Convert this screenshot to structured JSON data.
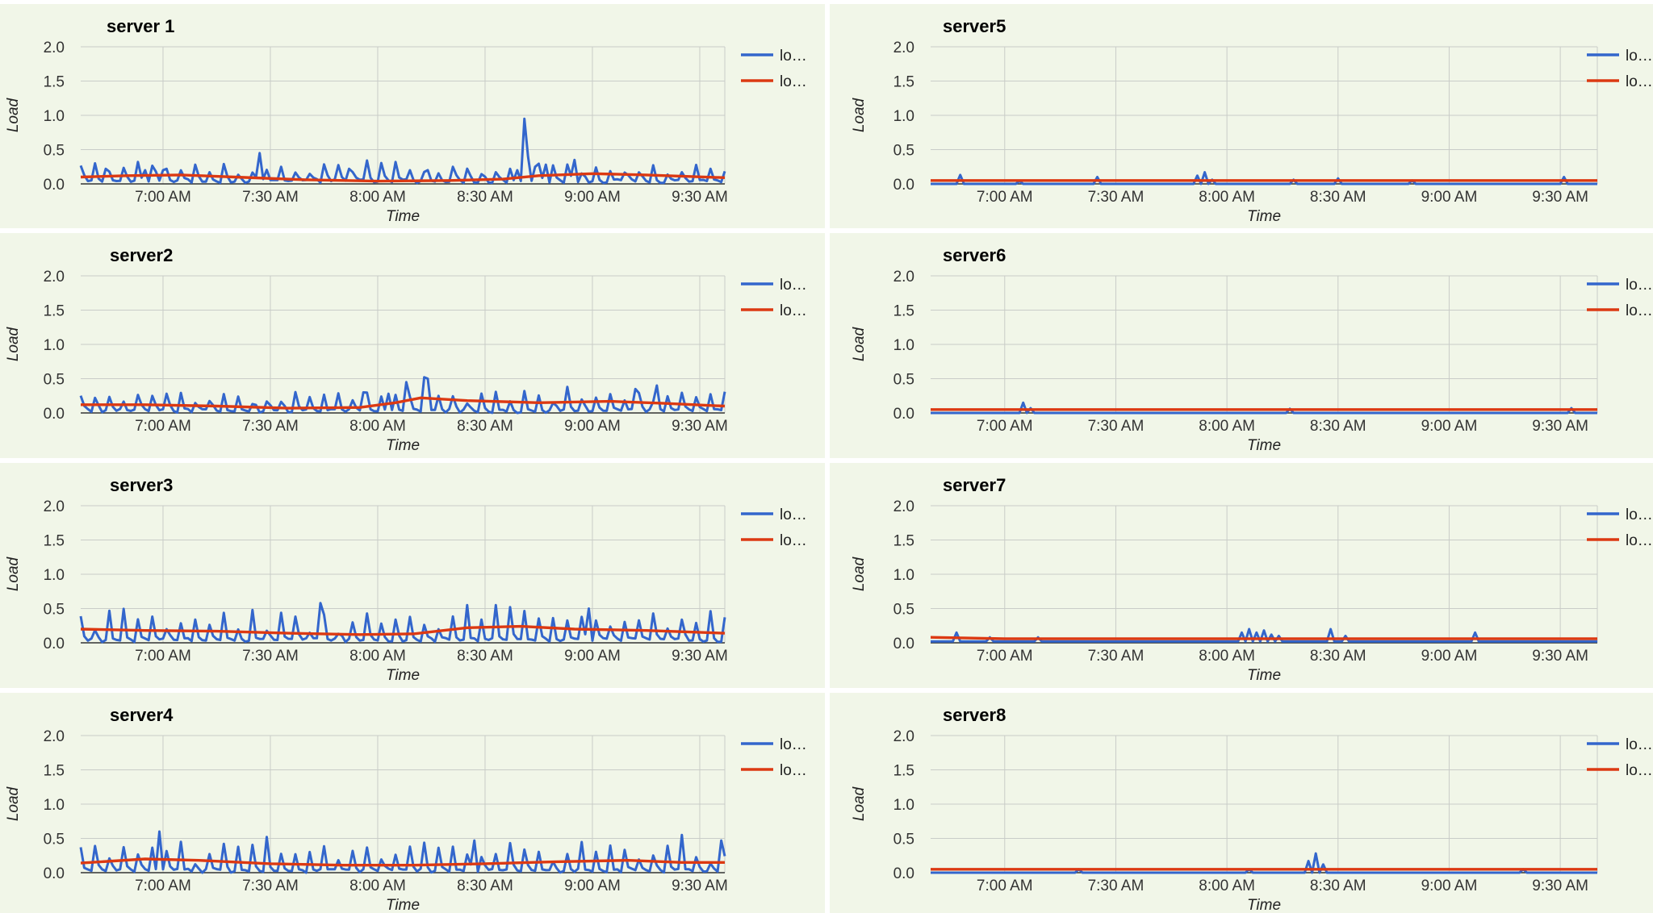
{
  "colors": {
    "panel_background": "#f1f6e8",
    "grid": "#c9ccc8",
    "series_blue": "#3366cc",
    "series_red": "#dc3912",
    "axis_baseline": "#333333"
  },
  "chart_data": [
    {
      "type": "line",
      "title": "server 1",
      "xlabel": "Time",
      "ylabel": "Load",
      "x_range": [
        "06:37",
        "09:37"
      ],
      "ylim": [
        0,
        2
      ],
      "y_ticks": [
        "2.0",
        "1.5",
        "1.0",
        "0.5",
        "0.0"
      ],
      "x_ticks": [
        "7:00 AM",
        "7:30 AM",
        "8:00 AM",
        "8:30 AM",
        "9:00 AM",
        "9:30 AM"
      ],
      "grid": true,
      "legend": {
        "position": "right",
        "entries": [
          "lo…",
          "lo…"
        ]
      },
      "series": [
        {
          "color": "#3366cc",
          "pattern": "spiky",
          "base": 0.05,
          "spike_max": 0.3,
          "spikes": [
            [
              "06:41",
              0.3
            ],
            [
              "06:44",
              0.22
            ],
            [
              "06:55",
              0.2
            ],
            [
              "07:00",
              0.2
            ],
            [
              "06:58",
              0.18
            ],
            [
              "07:27",
              0.45
            ],
            [
              "07:33",
              0.25
            ],
            [
              "07:52",
              0.22
            ],
            [
              "08:09",
              0.2
            ],
            [
              "08:14",
              0.2
            ],
            [
              "08:39",
              0.2
            ],
            [
              "08:41",
              0.95
            ],
            [
              "08:42",
              0.4
            ],
            [
              "08:44",
              0.25
            ],
            [
              "08:47",
              0.28
            ],
            [
              "08:55",
              0.35
            ],
            [
              "09:33",
              0.22
            ]
          ]
        },
        {
          "color": "#dc3912",
          "pattern": "smooth",
          "points": [
            [
              "06:37",
              0.1
            ],
            [
              "06:50",
              0.12
            ],
            [
              "07:05",
              0.13
            ],
            [
              "07:20",
              0.1
            ],
            [
              "07:40",
              0.06
            ],
            [
              "08:00",
              0.04
            ],
            [
              "08:20",
              0.05
            ],
            [
              "08:35",
              0.07
            ],
            [
              "08:45",
              0.12
            ],
            [
              "09:00",
              0.15
            ],
            [
              "09:15",
              0.13
            ],
            [
              "09:37",
              0.09
            ]
          ]
        }
      ]
    },
    {
      "type": "line",
      "title": "server2",
      "xlabel": "Time",
      "ylabel": "Load",
      "x_range": [
        "06:37",
        "09:37"
      ],
      "ylim": [
        0,
        2
      ],
      "y_ticks": [
        "2.0",
        "1.5",
        "1.0",
        "0.5",
        "0.0"
      ],
      "x_ticks": [
        "7:00 AM",
        "7:30 AM",
        "8:00 AM",
        "8:30 AM",
        "9:00 AM",
        "9:30 AM"
      ],
      "grid": true,
      "legend": {
        "position": "right",
        "entries": [
          "lo…",
          "lo…"
        ]
      },
      "series": [
        {
          "color": "#3366cc",
          "pattern": "spiky",
          "base": 0.04,
          "spike_max": 0.28,
          "spikes": [
            [
              "07:56",
              0.3
            ],
            [
              "08:03",
              0.28
            ],
            [
              "08:08",
              0.45
            ],
            [
              "08:13",
              0.52
            ],
            [
              "08:14",
              0.5
            ],
            [
              "08:41",
              0.32
            ],
            [
              "08:53",
              0.38
            ],
            [
              "09:12",
              0.35
            ],
            [
              "09:18",
              0.4
            ]
          ]
        },
        {
          "color": "#dc3912",
          "pattern": "smooth",
          "points": [
            [
              "06:37",
              0.12
            ],
            [
              "06:55",
              0.12
            ],
            [
              "07:15",
              0.1
            ],
            [
              "07:35",
              0.07
            ],
            [
              "07:55",
              0.08
            ],
            [
              "08:05",
              0.15
            ],
            [
              "08:12",
              0.22
            ],
            [
              "08:25",
              0.18
            ],
            [
              "08:45",
              0.15
            ],
            [
              "09:05",
              0.17
            ],
            [
              "09:20",
              0.14
            ],
            [
              "09:37",
              0.1
            ]
          ]
        }
      ]
    },
    {
      "type": "line",
      "title": "server3",
      "xlabel": "Time",
      "ylabel": "Load",
      "x_range": [
        "06:37",
        "09:37"
      ],
      "ylim": [
        0,
        2
      ],
      "y_ticks": [
        "2.0",
        "1.5",
        "1.0",
        "0.5",
        "0.0"
      ],
      "x_ticks": [
        "7:00 AM",
        "7:30 AM",
        "8:00 AM",
        "8:30 AM",
        "9:00 AM",
        "9:30 AM"
      ],
      "grid": true,
      "legend": {
        "position": "right",
        "entries": [
          "lo…",
          "lo…"
        ]
      },
      "series": [
        {
          "color": "#3366cc",
          "pattern": "spiky",
          "base": 0.05,
          "spike_max": 0.45,
          "spikes": [
            [
              "07:44",
              0.58
            ],
            [
              "08:25",
              0.55
            ],
            [
              "08:33",
              0.55
            ],
            [
              "08:37",
              0.52
            ],
            [
              "08:59",
              0.5
            ]
          ]
        },
        {
          "color": "#dc3912",
          "pattern": "smooth",
          "points": [
            [
              "06:37",
              0.2
            ],
            [
              "06:55",
              0.18
            ],
            [
              "07:15",
              0.17
            ],
            [
              "07:35",
              0.14
            ],
            [
              "07:55",
              0.12
            ],
            [
              "08:10",
              0.13
            ],
            [
              "08:25",
              0.22
            ],
            [
              "08:40",
              0.24
            ],
            [
              "08:55",
              0.2
            ],
            [
              "09:15",
              0.18
            ],
            [
              "09:37",
              0.14
            ]
          ]
        }
      ]
    },
    {
      "type": "line",
      "title": "server4",
      "xlabel": "Time",
      "ylabel": "Load",
      "x_range": [
        "06:37",
        "09:37"
      ],
      "ylim": [
        0,
        2
      ],
      "y_ticks": [
        "2.0",
        "1.5",
        "1.0",
        "0.5",
        "0.0"
      ],
      "x_ticks": [
        "7:00 AM",
        "7:30 AM",
        "8:00 AM",
        "8:30 AM",
        "9:00 AM",
        "9:30 AM"
      ],
      "grid": true,
      "legend": {
        "position": "right",
        "entries": [
          "lo…",
          "lo…"
        ]
      },
      "series": [
        {
          "color": "#3366cc",
          "pattern": "spiky",
          "base": 0.04,
          "spike_max": 0.42,
          "spikes": [
            [
              "06:59",
              0.6
            ],
            [
              "07:29",
              0.52
            ],
            [
              "08:27",
              0.47
            ],
            [
              "09:25",
              0.55
            ],
            [
              "09:36",
              0.47
            ]
          ]
        },
        {
          "color": "#dc3912",
          "pattern": "smooth",
          "points": [
            [
              "06:37",
              0.14
            ],
            [
              "06:55",
              0.2
            ],
            [
              "07:10",
              0.18
            ],
            [
              "07:30",
              0.13
            ],
            [
              "07:50",
              0.11
            ],
            [
              "08:10",
              0.11
            ],
            [
              "08:30",
              0.13
            ],
            [
              "08:50",
              0.16
            ],
            [
              "09:10",
              0.18
            ],
            [
              "09:25",
              0.15
            ],
            [
              "09:37",
              0.15
            ]
          ]
        }
      ]
    },
    {
      "type": "line",
      "title": "server5",
      "xlabel": "Time",
      "ylabel": "Load",
      "x_range": [
        "06:40",
        "09:40"
      ],
      "ylim": [
        0,
        2
      ],
      "y_ticks": [
        "2.0",
        "1.5",
        "1.0",
        "0.5",
        "0.0"
      ],
      "x_ticks": [
        "7:00 AM",
        "7:30 AM",
        "8:00 AM",
        "8:30 AM",
        "9:00 AM",
        "9:30 AM"
      ],
      "grid": true,
      "legend": {
        "position": "right",
        "entries": [
          "lo…",
          "lo…"
        ]
      },
      "series": [
        {
          "color": "#3366cc",
          "pattern": "flat",
          "base": 0.0,
          "spikes": [
            [
              "06:48",
              0.13
            ],
            [
              "07:04",
              0.04
            ],
            [
              "07:25",
              0.1
            ],
            [
              "07:52",
              0.12
            ],
            [
              "07:54",
              0.17
            ],
            [
              "07:56",
              0.06
            ],
            [
              "08:18",
              0.06
            ],
            [
              "08:30",
              0.08
            ],
            [
              "08:50",
              0.05
            ],
            [
              "09:31",
              0.1
            ]
          ]
        },
        {
          "color": "#dc3912",
          "pattern": "smooth",
          "points": [
            [
              "06:40",
              0.05
            ],
            [
              "09:40",
              0.05
            ]
          ]
        }
      ]
    },
    {
      "type": "line",
      "title": "server6",
      "xlabel": "Time",
      "ylabel": "Load",
      "x_range": [
        "06:40",
        "09:40"
      ],
      "ylim": [
        0,
        2
      ],
      "y_ticks": [
        "2.0",
        "1.5",
        "1.0",
        "0.5",
        "0.0"
      ],
      "x_ticks": [
        "7:00 AM",
        "7:30 AM",
        "8:00 AM",
        "8:30 AM",
        "9:00 AM",
        "9:30 AM"
      ],
      "grid": true,
      "legend": {
        "position": "right",
        "entries": [
          "lo…",
          "lo…"
        ]
      },
      "series": [
        {
          "color": "#3366cc",
          "pattern": "flat",
          "base": 0.0,
          "spikes": [
            [
              "07:05",
              0.15
            ],
            [
              "07:07",
              0.07
            ],
            [
              "08:17",
              0.06
            ],
            [
              "09:33",
              0.07
            ]
          ]
        },
        {
          "color": "#dc3912",
          "pattern": "smooth",
          "points": [
            [
              "06:40",
              0.05
            ],
            [
              "09:40",
              0.05
            ]
          ]
        }
      ]
    },
    {
      "type": "line",
      "title": "server7",
      "xlabel": "Time",
      "ylabel": "Load",
      "x_range": [
        "06:40",
        "09:40"
      ],
      "ylim": [
        0,
        2
      ],
      "y_ticks": [
        "2.0",
        "1.5",
        "1.0",
        "0.5",
        "0.0"
      ],
      "x_ticks": [
        "7:00 AM",
        "7:30 AM",
        "8:00 AM",
        "8:30 AM",
        "9:00 AM",
        "9:30 AM"
      ],
      "grid": true,
      "legend": {
        "position": "right",
        "entries": [
          "lo…",
          "lo…"
        ]
      },
      "series": [
        {
          "color": "#3366cc",
          "pattern": "flat",
          "base": 0.02,
          "spikes": [
            [
              "06:47",
              0.15
            ],
            [
              "06:56",
              0.08
            ],
            [
              "07:09",
              0.08
            ],
            [
              "08:04",
              0.15
            ],
            [
              "08:06",
              0.2
            ],
            [
              "08:08",
              0.15
            ],
            [
              "08:10",
              0.18
            ],
            [
              "08:12",
              0.12
            ],
            [
              "08:14",
              0.1
            ],
            [
              "08:28",
              0.2
            ],
            [
              "08:32",
              0.1
            ],
            [
              "09:07",
              0.15
            ]
          ]
        },
        {
          "color": "#dc3912",
          "pattern": "smooth",
          "points": [
            [
              "06:40",
              0.08
            ],
            [
              "07:00",
              0.06
            ],
            [
              "09:40",
              0.06
            ]
          ]
        }
      ]
    },
    {
      "type": "line",
      "title": "server8",
      "xlabel": "Time",
      "ylabel": "Load",
      "x_range": [
        "06:40",
        "09:40"
      ],
      "ylim": [
        0,
        2
      ],
      "y_ticks": [
        "2.0",
        "1.5",
        "1.0",
        "0.5",
        "0.0"
      ],
      "x_ticks": [
        "7:00 AM",
        "7:30 AM",
        "8:00 AM",
        "8:30 AM",
        "9:00 AM",
        "9:30 AM"
      ],
      "grid": true,
      "legend": {
        "position": "right",
        "entries": [
          "lo…",
          "lo…"
        ]
      },
      "series": [
        {
          "color": "#3366cc",
          "pattern": "flat",
          "base": 0.0,
          "spikes": [
            [
              "07:20",
              0.05
            ],
            [
              "08:06",
              0.05
            ],
            [
              "08:22",
              0.17
            ],
            [
              "08:24",
              0.28
            ],
            [
              "08:26",
              0.12
            ],
            [
              "09:20",
              0.05
            ]
          ]
        },
        {
          "color": "#dc3912",
          "pattern": "smooth",
          "points": [
            [
              "06:40",
              0.05
            ],
            [
              "09:40",
              0.05
            ]
          ]
        }
      ]
    }
  ]
}
